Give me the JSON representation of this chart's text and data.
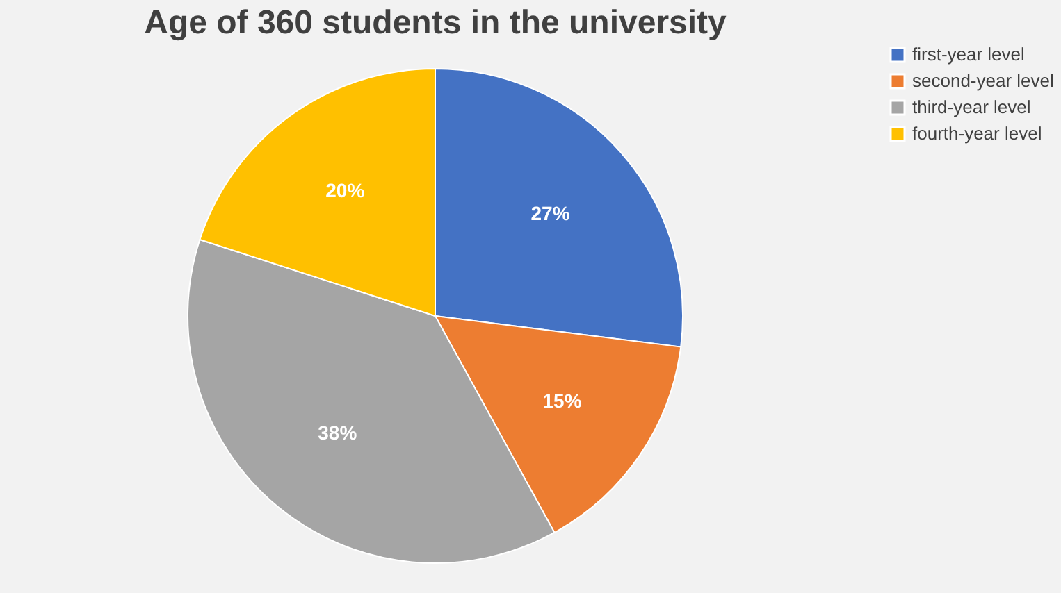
{
  "chart_data": {
    "type": "pie",
    "title": "Age of 360 students in the university",
    "categories": [
      "first-year level",
      "second-year level",
      "third-year level",
      "fourth-year level"
    ],
    "values": [
      27,
      15,
      38,
      20
    ],
    "colors": [
      "#4472c4",
      "#ed7d31",
      "#a5a5a5",
      "#ffc000"
    ],
    "value_labels": [
      "27%",
      "15%",
      "38%",
      "20%"
    ],
    "legend": "right"
  }
}
